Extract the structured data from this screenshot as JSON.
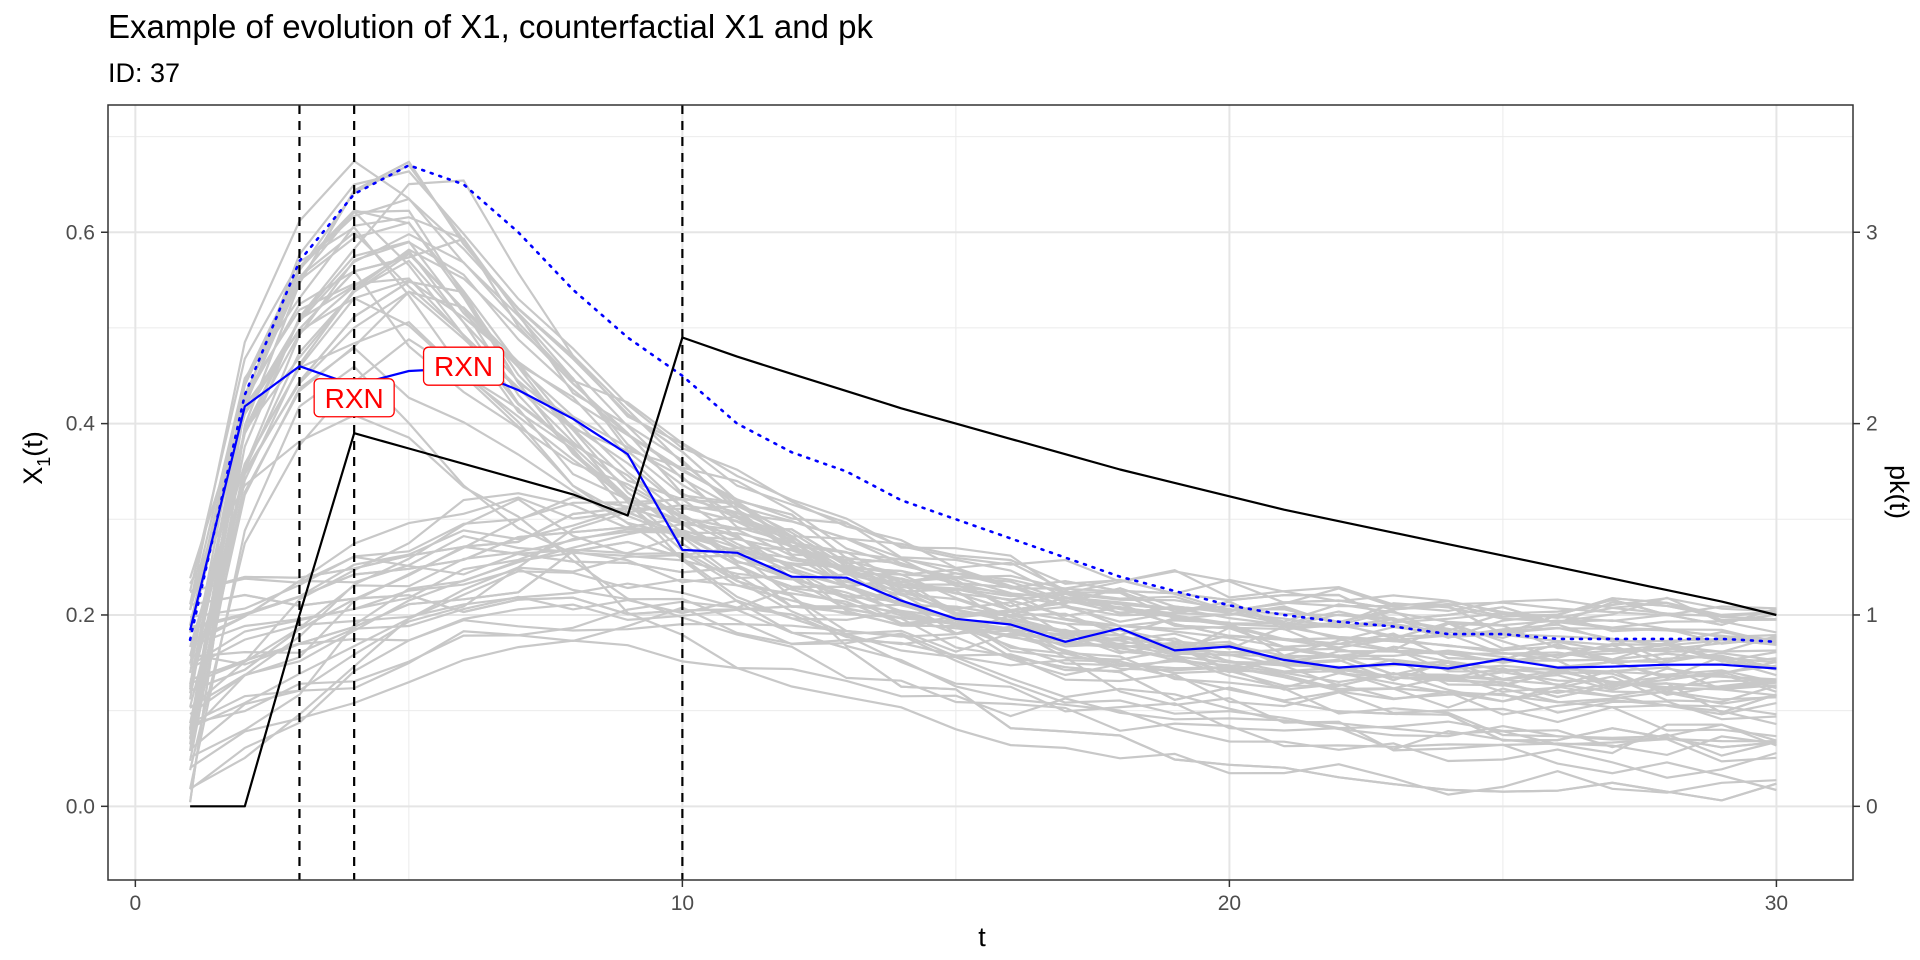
{
  "chart_data": {
    "type": "line",
    "title": "Example of evolution of X1, counterfactial X1 and pk",
    "subtitle": "ID: 37",
    "xlabel": "t",
    "ylabel": "X1(t)",
    "ylabel_main": "X",
    "ylabel_sub": "1",
    "ylabel_tail": "(t)",
    "y2label": "pk(t)",
    "xlim": [
      -0.5,
      31.4
    ],
    "ylim": [
      -0.077,
      0.733
    ],
    "y2lim": [
      -0.385,
      3.665
    ],
    "x_ticks": [
      0,
      10,
      20,
      30
    ],
    "y_ticks": [
      0.0,
      0.2,
      0.4,
      0.6
    ],
    "y_tick_labels": [
      "0.0",
      "0.2",
      "0.4",
      "0.6"
    ],
    "y2_ticks": [
      0,
      1,
      2,
      3
    ],
    "grid": true,
    "x": [
      1,
      2,
      3,
      4,
      5,
      6,
      7,
      8,
      9,
      10,
      11,
      12,
      13,
      14,
      15,
      16,
      17,
      18,
      19,
      20,
      21,
      22,
      23,
      24,
      25,
      26,
      27,
      28,
      29,
      30
    ],
    "series": [
      {
        "role": "observed",
        "color": "#0000ff",
        "axis": "left",
        "values": [
          0.184,
          0.418,
          0.46,
          0.44,
          0.455,
          0.458,
          0.435,
          0.405,
          0.368,
          0.268,
          0.265,
          0.24,
          0.239,
          0.215,
          0.196,
          0.19,
          0.172,
          0.186,
          0.163,
          0.167,
          0.153,
          0.145,
          0.149,
          0.144,
          0.154,
          0.145,
          0.146,
          0.148,
          0.148,
          0.144
        ]
      },
      {
        "role": "counterfactual",
        "color": "#0000ff",
        "dash": "dotted",
        "axis": "left",
        "values": [
          0.174,
          0.43,
          0.57,
          0.64,
          0.67,
          0.65,
          0.6,
          0.54,
          0.49,
          0.45,
          0.4,
          0.37,
          0.35,
          0.32,
          0.3,
          0.28,
          0.26,
          0.24,
          0.225,
          0.21,
          0.2,
          0.193,
          0.188,
          0.18,
          0.18,
          0.175,
          0.175,
          0.175,
          0.175,
          0.172
        ]
      },
      {
        "role": "pk",
        "color": "#000000",
        "axis": "right",
        "values": [
          0,
          0,
          1.0,
          1.95,
          1.87,
          1.79,
          1.71,
          1.63,
          1.52,
          2.45,
          2.35,
          2.26,
          2.17,
          2.08,
          2.0,
          1.92,
          1.84,
          1.76,
          1.69,
          1.62,
          1.55,
          1.49,
          1.43,
          1.37,
          1.31,
          1.25,
          1.19,
          1.13,
          1.07,
          1.0
        ]
      }
    ],
    "background_series_color": "#c8c8c8",
    "vlines_x": [
      3,
      4,
      10
    ],
    "annotations": [
      {
        "label": "RXN",
        "x": 4.0,
        "y": 0.427,
        "color": "#ff0000"
      },
      {
        "label": "RXN",
        "x": 6.0,
        "y": 0.46,
        "color": "#ff0000"
      }
    ]
  }
}
